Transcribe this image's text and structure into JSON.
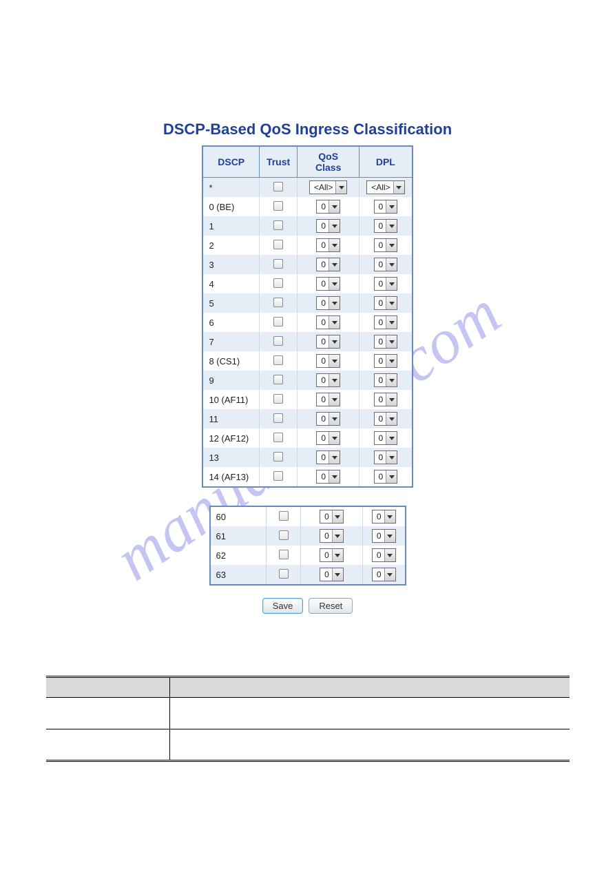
{
  "title": "DSCP-Based QoS Ingress Classification",
  "columns": {
    "dscp": "DSCP",
    "trust": "Trust",
    "qos": "QoS Class",
    "dpl": "DPL"
  },
  "all_row": {
    "dscp": "*",
    "qos": "<All>",
    "dpl": "<All>"
  },
  "rows_top": [
    {
      "dscp": "0 (BE)",
      "qos": "0",
      "dpl": "0"
    },
    {
      "dscp": "1",
      "qos": "0",
      "dpl": "0"
    },
    {
      "dscp": "2",
      "qos": "0",
      "dpl": "0"
    },
    {
      "dscp": "3",
      "qos": "0",
      "dpl": "0"
    },
    {
      "dscp": "4",
      "qos": "0",
      "dpl": "0"
    },
    {
      "dscp": "5",
      "qos": "0",
      "dpl": "0"
    },
    {
      "dscp": "6",
      "qos": "0",
      "dpl": "0"
    },
    {
      "dscp": "7",
      "qos": "0",
      "dpl": "0"
    },
    {
      "dscp": "8 (CS1)",
      "qos": "0",
      "dpl": "0"
    },
    {
      "dscp": "9",
      "qos": "0",
      "dpl": "0"
    },
    {
      "dscp": "10 (AF11)",
      "qos": "0",
      "dpl": "0"
    },
    {
      "dscp": "11",
      "qos": "0",
      "dpl": "0"
    },
    {
      "dscp": "12 (AF12)",
      "qos": "0",
      "dpl": "0"
    },
    {
      "dscp": "13",
      "qos": "0",
      "dpl": "0"
    },
    {
      "dscp": "14 (AF13)",
      "qos": "0",
      "dpl": "0"
    }
  ],
  "rows_bottom": [
    {
      "dscp": "60",
      "qos": "0",
      "dpl": "0"
    },
    {
      "dscp": "61",
      "qos": "0",
      "dpl": "0"
    },
    {
      "dscp": "62",
      "qos": "0",
      "dpl": "0"
    },
    {
      "dscp": "63",
      "qos": "0",
      "dpl": "0"
    }
  ],
  "buttons": {
    "save": "Save",
    "reset": "Reset"
  },
  "watermark": "manualshive.com",
  "colors": {
    "title": "#20419a",
    "table_border": "#6a8abf",
    "header_bg": "#e5edf7",
    "row_even_bg": "#e5edf7",
    "row_odd_bg": "#ffffff",
    "watermark": "rgba(90,90,220,0.35)"
  }
}
